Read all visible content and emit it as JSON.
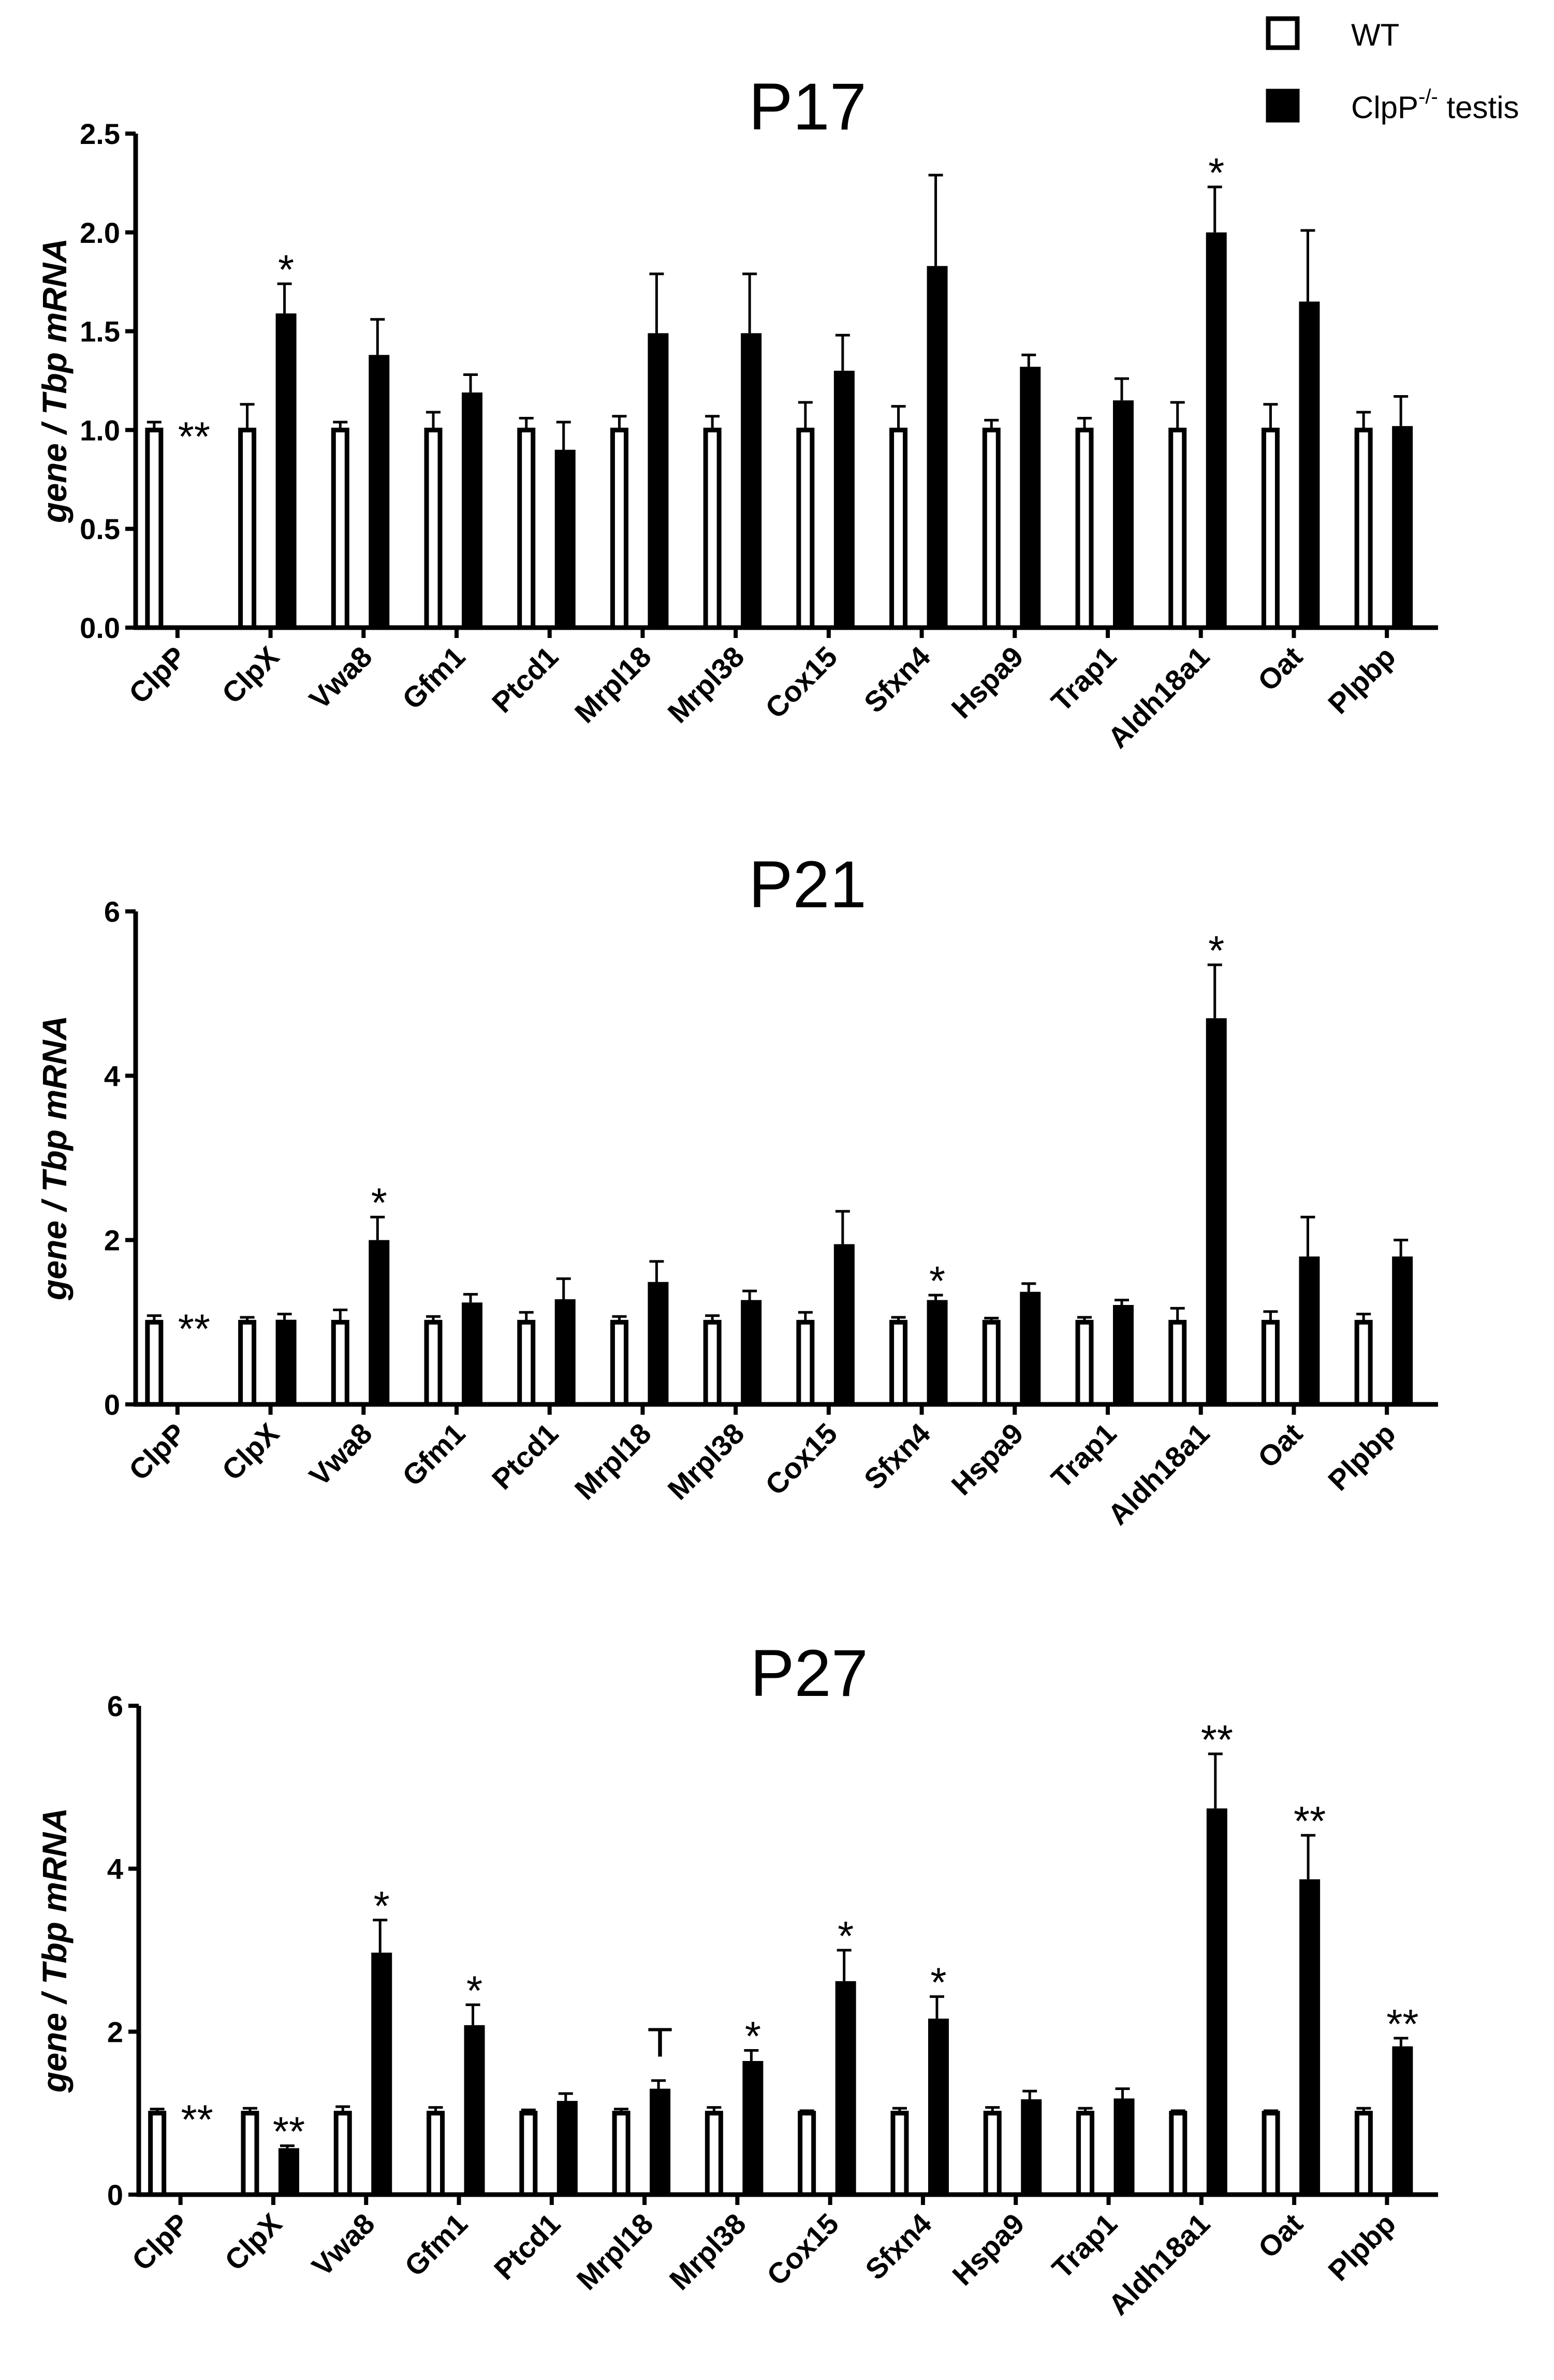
{
  "legend": {
    "items": [
      {
        "label": "WT",
        "sup": "",
        "suffix": "",
        "fill": "#ffffff"
      },
      {
        "label": "ClpP",
        "sup": "-/-",
        "suffix": " testis",
        "fill": "#000000"
      }
    ]
  },
  "chart_data": [
    {
      "type": "bar",
      "title": "P17",
      "ylabel": "gene / Tbp mRNA",
      "ylim": [
        0,
        2.5
      ],
      "yticks": [
        "0.0",
        "0.5",
        "1.0",
        "1.5",
        "2.0",
        "2.5"
      ],
      "categories": [
        "ClpP",
        "ClpX",
        "Vwa8",
        "Gfm1",
        "Ptcd1",
        "Mrpl18",
        "Mrpl38",
        "Cox15",
        "Sfxn4",
        "Hspa9",
        "Trap1",
        "Aldh18a1",
        "Oat",
        "Plpbp"
      ],
      "series": [
        {
          "name": "WT",
          "values": [
            1.0,
            1.0,
            1.0,
            1.0,
            1.0,
            1.0,
            1.0,
            1.0,
            1.0,
            1.0,
            1.0,
            1.0,
            1.0,
            1.0
          ],
          "errors": [
            0.04,
            0.13,
            0.04,
            0.09,
            0.06,
            0.07,
            0.07,
            0.14,
            0.12,
            0.05,
            0.06,
            0.14,
            0.13,
            0.09
          ]
        },
        {
          "name": "ClpP-/- testis",
          "values": [
            0,
            1.59,
            1.38,
            1.19,
            0.9,
            1.49,
            1.49,
            1.3,
            1.83,
            1.32,
            1.15,
            2.0,
            1.65,
            1.02
          ],
          "errors": [
            0,
            0.15,
            0.18,
            0.09,
            0.14,
            0.3,
            0.3,
            0.18,
            0.46,
            0.06,
            0.11,
            0.23,
            0.36,
            0.15
          ]
        }
      ],
      "annotations": [
        {
          "category": "ClpP",
          "text": "**"
        },
        {
          "category": "ClpX",
          "text": "*"
        },
        {
          "category": "Aldh18a1",
          "text": "*"
        }
      ]
    },
    {
      "type": "bar",
      "title": "P21",
      "ylabel": "gene / Tbp mRNA",
      "ylim": [
        0,
        6
      ],
      "yticks": [
        "0",
        "2",
        "4",
        "6"
      ],
      "categories": [
        "ClpP",
        "ClpX",
        "Vwa8",
        "Gfm1",
        "Ptcd1",
        "Mrpl18",
        "Mrpl38",
        "Cox15",
        "Sfxn4",
        "Hspa9",
        "Trap1",
        "Aldh18a1",
        "Oat",
        "Plpbp"
      ],
      "series": [
        {
          "name": "WT",
          "values": [
            1.0,
            1.0,
            1.0,
            1.0,
            1.0,
            1.0,
            1.0,
            1.0,
            1.0,
            1.0,
            1.0,
            1.0,
            1.0,
            1.0
          ],
          "errors": [
            0.08,
            0.06,
            0.15,
            0.07,
            0.12,
            0.07,
            0.08,
            0.12,
            0.06,
            0.05,
            0.06,
            0.17,
            0.13,
            0.1
          ]
        },
        {
          "name": "ClpP-/- testis",
          "values": [
            0,
            1.03,
            2.0,
            1.24,
            1.28,
            1.49,
            1.27,
            1.95,
            1.27,
            1.37,
            1.21,
            4.7,
            1.8,
            1.8
          ],
          "errors": [
            0,
            0.07,
            0.28,
            0.1,
            0.25,
            0.25,
            0.11,
            0.4,
            0.06,
            0.1,
            0.06,
            0.65,
            0.48,
            0.2
          ]
        }
      ],
      "annotations": [
        {
          "category": "ClpP",
          "text": "**"
        },
        {
          "category": "Vwa8",
          "text": "*"
        },
        {
          "category": "Sfxn4",
          "text": "*"
        },
        {
          "category": "Aldh18a1",
          "text": "*"
        }
      ]
    },
    {
      "type": "bar",
      "title": "P27",
      "ylabel": "gene / Tbp mRNA",
      "ylim": [
        0,
        6
      ],
      "yticks": [
        "0",
        "2",
        "4",
        "6"
      ],
      "categories": [
        "ClpP",
        "ClpX",
        "Vwa8",
        "Gfm1",
        "Ptcd1",
        "Mrpl18",
        "Mrpl38",
        "Cox15",
        "Sfxn4",
        "Hspa9",
        "Trap1",
        "Aldh18a1",
        "Oat",
        "Plpbp"
      ],
      "series": [
        {
          "name": "WT",
          "values": [
            1.0,
            1.0,
            1.0,
            1.0,
            1.0,
            1.0,
            1.0,
            1.0,
            1.0,
            1.0,
            1.0,
            1.0,
            1.0,
            1.0
          ],
          "errors": [
            0.05,
            0.06,
            0.08,
            0.07,
            0.04,
            0.05,
            0.07,
            0.03,
            0.06,
            0.07,
            0.06,
            0.03,
            0.03,
            0.06
          ]
        },
        {
          "name": "ClpP-/- testis",
          "values": [
            0,
            0.57,
            2.97,
            2.08,
            1.15,
            1.3,
            1.64,
            2.62,
            2.16,
            1.17,
            1.18,
            4.74,
            3.87,
            1.82
          ],
          "errors": [
            0,
            0.03,
            0.4,
            0.25,
            0.09,
            0.1,
            0.13,
            0.38,
            0.27,
            0.1,
            0.12,
            0.67,
            0.54,
            0.1
          ]
        }
      ],
      "annotations": [
        {
          "category": "ClpP",
          "text": "**"
        },
        {
          "category": "ClpX",
          "text": "**"
        },
        {
          "category": "Vwa8",
          "text": "*"
        },
        {
          "category": "Gfm1",
          "text": "*"
        },
        {
          "category": "Mrpl18",
          "text": "T"
        },
        {
          "category": "Mrpl38",
          "text": "*"
        },
        {
          "category": "Cox15",
          "text": "*"
        },
        {
          "category": "Sfxn4",
          "text": "*"
        },
        {
          "category": "Aldh18a1",
          "text": "**"
        },
        {
          "category": "Oat",
          "text": "**"
        },
        {
          "category": "Plpbp",
          "text": "**"
        }
      ]
    }
  ]
}
